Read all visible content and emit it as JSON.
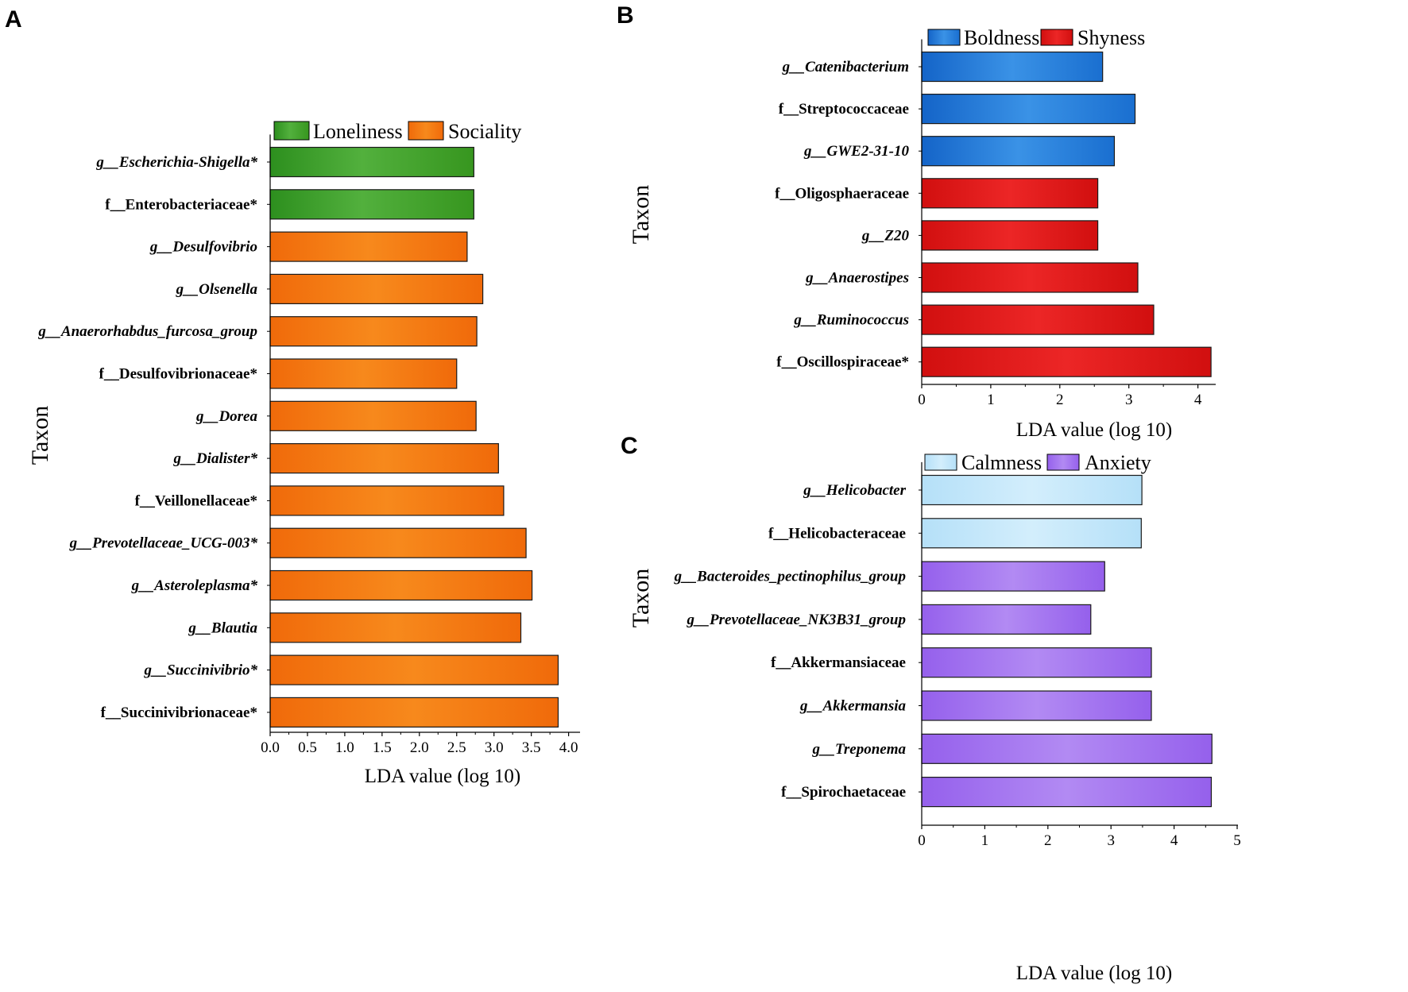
{
  "panels": [
    {
      "letter": "A",
      "xlabel": "LDA value (log 10)",
      "ylabel": "Taxon",
      "legend": [
        {
          "name": "Loneliness",
          "color": "#3f9f2a"
        },
        {
          "name": "Sociality",
          "color": "#f47a12"
        }
      ],
      "ticks": [
        "0.0",
        "0.5",
        "1.0",
        "1.5",
        "2.0",
        "2.5",
        "3.0",
        "3.5",
        "4.0"
      ]
    },
    {
      "letter": "B",
      "xlabel": "LDA value (log 10)",
      "ylabel": "Taxon",
      "legend": [
        {
          "name": "Boldness",
          "color": "#1f7bd6"
        },
        {
          "name": "Shyness",
          "color": "#df1414"
        }
      ],
      "ticks": [
        "0",
        "1",
        "2",
        "3",
        "4"
      ]
    },
    {
      "letter": "C",
      "xlabel": "LDA value (log 10)",
      "ylabel": "Taxon",
      "legend": [
        {
          "name": "Calmness",
          "color": "#bfe6fa"
        },
        {
          "name": "Anxiety",
          "color": "#a070ee"
        }
      ],
      "ticks": [
        "0",
        "1",
        "2",
        "3",
        "4",
        "5"
      ]
    }
  ],
  "chart_data": [
    {
      "type": "bar",
      "orientation": "horizontal",
      "title": "A",
      "xlabel": "LDA value (log 10)",
      "ylabel": "Taxon",
      "xlim": [
        0,
        4.2
      ],
      "categories": [
        "g__Escherichia-Shigella*",
        "f__Enterobacteriaceae*",
        "g__Desulfovibrio",
        "g__Olsenella",
        "g__Anaerorhabdus_furcosa_group",
        "f__Desulfovibrionaceae*",
        "g__Dorea",
        "g__Dialister*",
        "f__Veillonellaceae*",
        "g__Prevotellaceae_UCG-003*",
        "g__Asteroleplasma*",
        "g__Blautia",
        "g__Succinivibrio*",
        "f__Succinivibrionaceae*"
      ],
      "values": [
        2.73,
        2.73,
        2.64,
        2.85,
        2.77,
        2.5,
        2.76,
        3.06,
        3.13,
        3.43,
        3.51,
        3.36,
        3.86,
        3.86
      ],
      "groups": [
        "Loneliness",
        "Loneliness",
        "Sociality",
        "Sociality",
        "Sociality",
        "Sociality",
        "Sociality",
        "Sociality",
        "Sociality",
        "Sociality",
        "Sociality",
        "Sociality",
        "Sociality",
        "Sociality"
      ],
      "italic": [
        true,
        false,
        true,
        true,
        true,
        false,
        true,
        true,
        false,
        true,
        true,
        true,
        true,
        false
      ]
    },
    {
      "type": "bar",
      "orientation": "horizontal",
      "title": "B",
      "xlabel": "LDA value (log 10)",
      "ylabel": "Taxon",
      "xlim": [
        0,
        4.4
      ],
      "categories": [
        "g__Catenibacterium",
        "f__Streptococcaceae",
        "g__GWE2-31-10",
        "f__Oligosphaeraceae",
        "g__Z20",
        "g__Anaerostipes",
        "g__Ruminococcus",
        "f__Oscillospiraceae*"
      ],
      "values": [
        2.62,
        3.09,
        2.79,
        2.55,
        2.55,
        3.13,
        3.36,
        4.19
      ],
      "groups": [
        "Boldness",
        "Boldness",
        "Boldness",
        "Shyness",
        "Shyness",
        "Shyness",
        "Shyness",
        "Shyness"
      ],
      "italic": [
        true,
        false,
        true,
        false,
        true,
        true,
        true,
        false
      ]
    },
    {
      "type": "bar",
      "orientation": "horizontal",
      "title": "C",
      "xlabel": "LDA value (log 10)",
      "ylabel": "Taxon",
      "xlim": [
        0,
        5
      ],
      "categories": [
        "g__Helicobacter",
        "f__Helicobacteraceae",
        "g__Bacteroides_pectinophilus_group",
        "g__Prevotellaceae_NK3B31_group",
        "f__Akkermansiaceae",
        "g__Akkermansia",
        "g__Treponema",
        "f__Spirochaetaceae"
      ],
      "values": [
        3.49,
        3.48,
        2.9,
        2.68,
        3.64,
        3.64,
        4.6,
        4.59
      ],
      "groups": [
        "Calmness",
        "Calmness",
        "Anxiety",
        "Anxiety",
        "Anxiety",
        "Anxiety",
        "Anxiety",
        "Anxiety"
      ],
      "italic": [
        true,
        false,
        true,
        true,
        false,
        true,
        true,
        false
      ]
    }
  ]
}
